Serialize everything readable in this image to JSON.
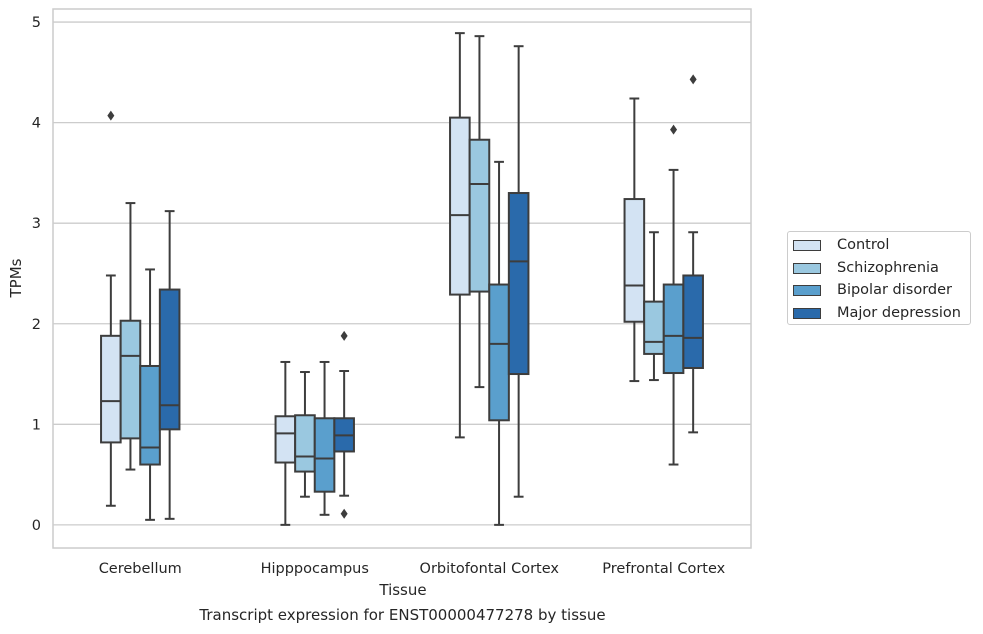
{
  "chart_data": {
    "type": "boxplot",
    "xlabel": "Tissue",
    "ylabel": "TPMs",
    "ylim": [
      -0.23,
      5.13
    ],
    "yticks": [
      0,
      1,
      2,
      3,
      4,
      5
    ],
    "grid": true,
    "legend_position": "right",
    "categories": [
      "Cerebellum",
      "Hipppocampus",
      "Orbitofontal Cortex",
      "Prefrontal Cortex"
    ],
    "series": [
      {
        "name": "Control",
        "color": "#d3e3f3",
        "boxes": [
          {
            "whisker_low": 0.19,
            "q1": 0.82,
            "median": 1.23,
            "q3": 1.88,
            "whisker_high": 2.48,
            "outliers": [
              4.07
            ]
          },
          {
            "whisker_low": 0.0,
            "q1": 0.62,
            "median": 0.91,
            "q3": 1.08,
            "whisker_high": 1.62,
            "outliers": []
          },
          {
            "whisker_low": 0.87,
            "q1": 2.29,
            "median": 3.08,
            "q3": 4.05,
            "whisker_high": 4.89,
            "outliers": []
          },
          {
            "whisker_low": 1.43,
            "q1": 2.02,
            "median": 2.38,
            "q3": 3.24,
            "whisker_high": 4.24,
            "outliers": []
          }
        ]
      },
      {
        "name": "Schizophrenia",
        "color": "#9ac8e0",
        "boxes": [
          {
            "whisker_low": 0.55,
            "q1": 0.86,
            "median": 1.68,
            "q3": 2.03,
            "whisker_high": 3.2,
            "outliers": []
          },
          {
            "whisker_low": 0.28,
            "q1": 0.53,
            "median": 0.68,
            "q3": 1.09,
            "whisker_high": 1.52,
            "outliers": []
          },
          {
            "whisker_low": 1.37,
            "q1": 2.32,
            "median": 3.39,
            "q3": 3.83,
            "whisker_high": 4.86,
            "outliers": []
          },
          {
            "whisker_low": 1.44,
            "q1": 1.7,
            "median": 1.82,
            "q3": 2.22,
            "whisker_high": 2.91,
            "outliers": []
          }
        ]
      },
      {
        "name": "Bipolar disorder",
        "color": "#5a9fcd",
        "boxes": [
          {
            "whisker_low": 0.05,
            "q1": 0.6,
            "median": 0.77,
            "q3": 1.58,
            "whisker_high": 2.54,
            "outliers": []
          },
          {
            "whisker_low": 0.1,
            "q1": 0.33,
            "median": 0.66,
            "q3": 1.06,
            "whisker_high": 1.62,
            "outliers": []
          },
          {
            "whisker_low": 0.0,
            "q1": 1.04,
            "median": 1.8,
            "q3": 2.39,
            "whisker_high": 3.61,
            "outliers": []
          },
          {
            "whisker_low": 0.6,
            "q1": 1.51,
            "median": 1.88,
            "q3": 2.39,
            "whisker_high": 3.53,
            "outliers": [
              3.93
            ]
          }
        ]
      },
      {
        "name": "Major depression",
        "color": "#2a6aab",
        "boxes": [
          {
            "whisker_low": 0.06,
            "q1": 0.95,
            "median": 1.19,
            "q3": 2.34,
            "whisker_high": 3.12,
            "outliers": []
          },
          {
            "whisker_low": 0.29,
            "q1": 0.73,
            "median": 0.89,
            "q3": 1.06,
            "whisker_high": 1.53,
            "outliers": [
              0.11,
              1.88
            ]
          },
          {
            "whisker_low": 0.28,
            "q1": 1.5,
            "median": 2.62,
            "q3": 3.3,
            "whisker_high": 4.76,
            "outliers": []
          },
          {
            "whisker_low": 0.92,
            "q1": 1.56,
            "median": 1.86,
            "q3": 2.48,
            "whisker_high": 2.91,
            "outliers": [
              4.43
            ]
          }
        ]
      }
    ]
  },
  "caption": "Transcript expression for ENST00000477278 by tissue"
}
